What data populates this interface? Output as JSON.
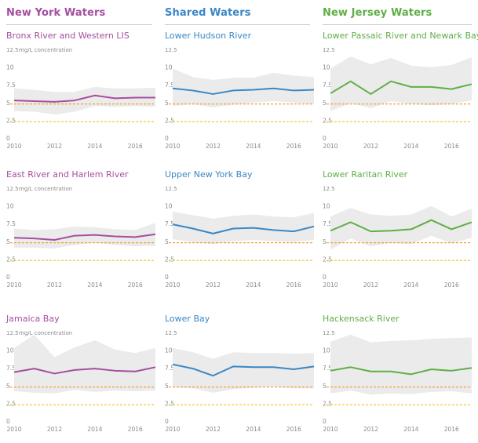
{
  "colors": {
    "ny": "#a64ea0",
    "shared": "#3a87c5",
    "nj": "#5fae46",
    "band": "#ebebeb",
    "threshold_orange": "#f0a030",
    "threshold_yellow": "#f2c21b",
    "axis_text": "#8a8a8a"
  },
  "headers": {
    "ny": "New York Waters",
    "shared": "Shared Waters",
    "nj": "New Jersey Waters"
  },
  "axis": {
    "y_ticks": [
      "12.5",
      "10",
      "7.5",
      "5",
      "2.5",
      "0"
    ],
    "x_ticks": [
      "2010",
      "2012",
      "2014",
      "2016"
    ],
    "unit_note": "mg/L concentration"
  },
  "chart_data": [
    {
      "type": "line",
      "column": "ny",
      "title": "Bronx River and Western LIS",
      "unit_note": true,
      "x": [
        2010,
        2011,
        2012,
        2013,
        2014,
        2015,
        2016,
        2017
      ],
      "series": [
        {
          "values": [
            5.3,
            5.2,
            5.1,
            5.3,
            6.0,
            5.6,
            5.7,
            5.7
          ]
        }
      ],
      "band_upper": [
        7.0,
        6.8,
        6.5,
        6.5,
        7.2,
        7.0,
        7.0,
        7.1
      ],
      "band_lower": [
        3.8,
        3.7,
        3.3,
        3.7,
        4.5,
        4.4,
        4.5,
        4.4
      ],
      "thresholds": [
        4.8,
        2.3
      ],
      "xlim": [
        2010,
        2017
      ],
      "ylim": [
        0,
        12.5
      ]
    },
    {
      "type": "line",
      "column": "shared",
      "title": "Lower Hudson River",
      "unit_note": false,
      "x": [
        2010,
        2011,
        2012,
        2013,
        2014,
        2015,
        2016,
        2017
      ],
      "series": [
        {
          "values": [
            7.0,
            6.7,
            6.2,
            6.7,
            6.8,
            7.0,
            6.7,
            6.8
          ]
        }
      ],
      "band_upper": [
        9.8,
        8.6,
        8.2,
        8.5,
        8.5,
        9.2,
        8.8,
        8.6
      ],
      "band_lower": [
        4.5,
        4.8,
        4.3,
        4.7,
        5.0,
        5.2,
        5.0,
        4.8
      ],
      "thresholds": [
        4.8,
        2.3
      ],
      "xlim": [
        2010,
        2017
      ],
      "ylim": [
        0,
        12.5
      ]
    },
    {
      "type": "line",
      "column": "nj",
      "title": "Lower Passaic River and Newark Bay",
      "unit_note": false,
      "x": [
        2010,
        2011,
        2012,
        2013,
        2014,
        2015,
        2016,
        2017
      ],
      "series": [
        {
          "values": [
            6.3,
            8.0,
            6.2,
            8.0,
            7.2,
            7.2,
            6.9,
            7.6
          ]
        }
      ],
      "band_upper": [
        9.8,
        11.5,
        10.4,
        11.3,
        10.2,
        10.0,
        10.3,
        11.4
      ],
      "band_lower": [
        3.8,
        4.9,
        4.2,
        5.2,
        4.8,
        4.6,
        4.8,
        5.3
      ],
      "thresholds": [
        4.8,
        2.3
      ],
      "xlim": [
        2010,
        2017
      ],
      "ylim": [
        0,
        12.5
      ]
    },
    {
      "type": "line",
      "column": "ny",
      "title": "East River and Harlem River",
      "unit_note": true,
      "x": [
        2010,
        2011,
        2012,
        2013,
        2014,
        2015,
        2016,
        2017
      ],
      "series": [
        {
          "values": [
            5.5,
            5.4,
            5.2,
            5.8,
            5.9,
            5.7,
            5.6,
            6.0
          ]
        }
      ],
      "band_upper": [
        6.8,
        6.6,
        6.7,
        7.1,
        7.0,
        6.7,
        6.6,
        7.6
      ],
      "band_lower": [
        4.1,
        4.1,
        4.0,
        4.5,
        4.8,
        4.5,
        4.3,
        4.4
      ],
      "thresholds": [
        4.8,
        2.3
      ],
      "xlim": [
        2010,
        2017
      ],
      "ylim": [
        0,
        12.5
      ]
    },
    {
      "type": "line",
      "column": "shared",
      "title": "Upper New York Bay",
      "unit_note": false,
      "x": [
        2010,
        2011,
        2012,
        2013,
        2014,
        2015,
        2016,
        2017
      ],
      "series": [
        {
          "values": [
            7.4,
            6.8,
            6.1,
            6.8,
            6.9,
            6.6,
            6.4,
            7.1
          ]
        }
      ],
      "band_upper": [
        9.2,
        8.7,
        8.2,
        8.6,
        8.8,
        8.5,
        8.4,
        9.0
      ],
      "band_lower": [
        5.3,
        4.9,
        4.6,
        5.0,
        5.2,
        5.0,
        4.9,
        5.2
      ],
      "thresholds": [
        4.8,
        2.3
      ],
      "xlim": [
        2010,
        2017
      ],
      "ylim": [
        0,
        12.5
      ]
    },
    {
      "type": "line",
      "column": "nj",
      "title": "Lower Raritan River",
      "unit_note": false,
      "x": [
        2010,
        2011,
        2012,
        2013,
        2014,
        2015,
        2016,
        2017
      ],
      "series": [
        {
          "values": [
            6.5,
            7.7,
            6.4,
            6.5,
            6.7,
            8.0,
            6.7,
            7.7
          ]
        }
      ],
      "band_upper": [
        8.5,
        9.7,
        8.8,
        8.6,
        8.8,
        10.0,
        8.5,
        9.6
      ],
      "band_lower": [
        3.8,
        5.4,
        4.3,
        4.8,
        4.6,
        5.8,
        4.7,
        5.5
      ],
      "thresholds": [
        4.8,
        2.3
      ],
      "xlim": [
        2010,
        2017
      ],
      "ylim": [
        0,
        12.5
      ]
    },
    {
      "type": "line",
      "column": "ny",
      "title": "Jamaica Bay",
      "unit_note": true,
      "x": [
        2010,
        2011,
        2012,
        2013,
        2014,
        2015,
        2016,
        2017
      ],
      "series": [
        {
          "values": [
            6.9,
            7.4,
            6.7,
            7.2,
            7.4,
            7.1,
            7.0,
            7.6
          ]
        }
      ],
      "band_upper": [
        10.3,
        12.2,
        9.0,
        10.4,
        11.4,
        10.1,
        9.6,
        10.3
      ],
      "band_lower": [
        4.2,
        4.0,
        3.9,
        4.4,
        4.1,
        4.3,
        4.2,
        4.3
      ],
      "thresholds": [
        4.8,
        2.3
      ],
      "xlim": [
        2010,
        2017
      ],
      "ylim": [
        0,
        12.5
      ]
    },
    {
      "type": "line",
      "column": "shared",
      "title": "Lower Bay",
      "unit_note": false,
      "x": [
        2010,
        2011,
        2012,
        2013,
        2014,
        2015,
        2016,
        2017
      ],
      "series": [
        {
          "values": [
            8.0,
            7.4,
            6.4,
            7.7,
            7.6,
            7.6,
            7.3,
            7.7
          ]
        }
      ],
      "band_upper": [
        10.3,
        9.7,
        8.8,
        9.7,
        9.6,
        9.6,
        9.5,
        9.6
      ],
      "band_lower": [
        4.8,
        4.6,
        4.0,
        4.5,
        4.7,
        4.9,
        4.6,
        4.6
      ],
      "thresholds": [
        4.8,
        2.3
      ],
      "xlim": [
        2010,
        2017
      ],
      "ylim": [
        0,
        12.5
      ]
    },
    {
      "type": "line",
      "column": "nj",
      "title": "Hackensack River",
      "unit_note": false,
      "x": [
        2010,
        2011,
        2012,
        2013,
        2014,
        2015,
        2016,
        2017
      ],
      "series": [
        {
          "values": [
            7.1,
            7.6,
            7.0,
            7.0,
            6.6,
            7.3,
            7.1,
            7.5
          ]
        }
      ],
      "band_upper": [
        11.2,
        12.2,
        11.1,
        11.3,
        11.4,
        11.6,
        11.7,
        11.8
      ],
      "band_lower": [
        3.9,
        4.3,
        3.7,
        3.9,
        3.8,
        4.1,
        4.2,
        3.9
      ],
      "thresholds": [
        4.8,
        2.3
      ],
      "xlim": [
        2010,
        2017
      ],
      "ylim": [
        0,
        12.5
      ]
    }
  ]
}
